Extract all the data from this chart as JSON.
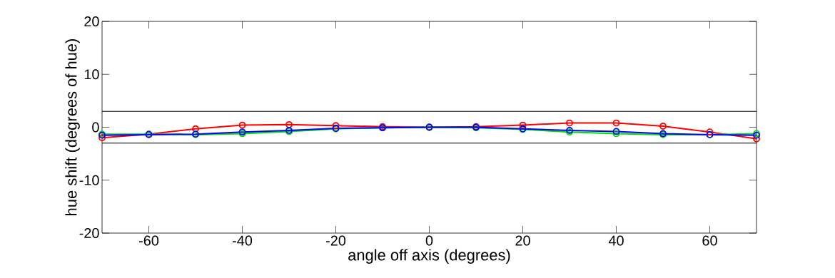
{
  "chart_data": {
    "type": "line",
    "xlabel": "angle off axis (degrees)",
    "ylabel": "hue shift (degrees of hue)",
    "x": [
      -70,
      -60,
      -50,
      -40,
      -30,
      -20,
      -10,
      0,
      10,
      20,
      30,
      40,
      50,
      60,
      70
    ],
    "series": [
      {
        "color": "#ff0000",
        "values": [
          -2.0,
          -1.3,
          -0.3,
          0.4,
          0.5,
          0.3,
          0.1,
          0,
          0.1,
          0.4,
          0.8,
          0.8,
          0.2,
          -0.9,
          -2.2
        ]
      },
      {
        "color": "#00dd00",
        "values": [
          -1.3,
          -1.3,
          -1.4,
          -1.2,
          -0.8,
          -0.3,
          -0.1,
          0,
          -0.1,
          -0.4,
          -0.9,
          -1.2,
          -1.4,
          -1.4,
          -1.2
        ]
      },
      {
        "color": "#0000ff",
        "values": [
          -1.5,
          -1.4,
          -1.3,
          -0.9,
          -0.6,
          -0.2,
          -0.1,
          0,
          0,
          -0.3,
          -0.6,
          -0.8,
          -1.2,
          -1.4,
          -1.5
        ]
      }
    ],
    "xlim": [
      -70,
      70
    ],
    "ylim": [
      -20,
      20
    ],
    "xticks": [
      -60,
      -40,
      -20,
      0,
      20,
      40,
      60
    ],
    "yticks": [
      -20,
      -10,
      0,
      10,
      20
    ],
    "ref_lines": [
      {
        "axis": "y",
        "value": 3,
        "color": "#000000"
      },
      {
        "axis": "y",
        "value": -3,
        "color": "#000000"
      }
    ],
    "grid": false,
    "marker": "circle",
    "line_style": "solid"
  }
}
